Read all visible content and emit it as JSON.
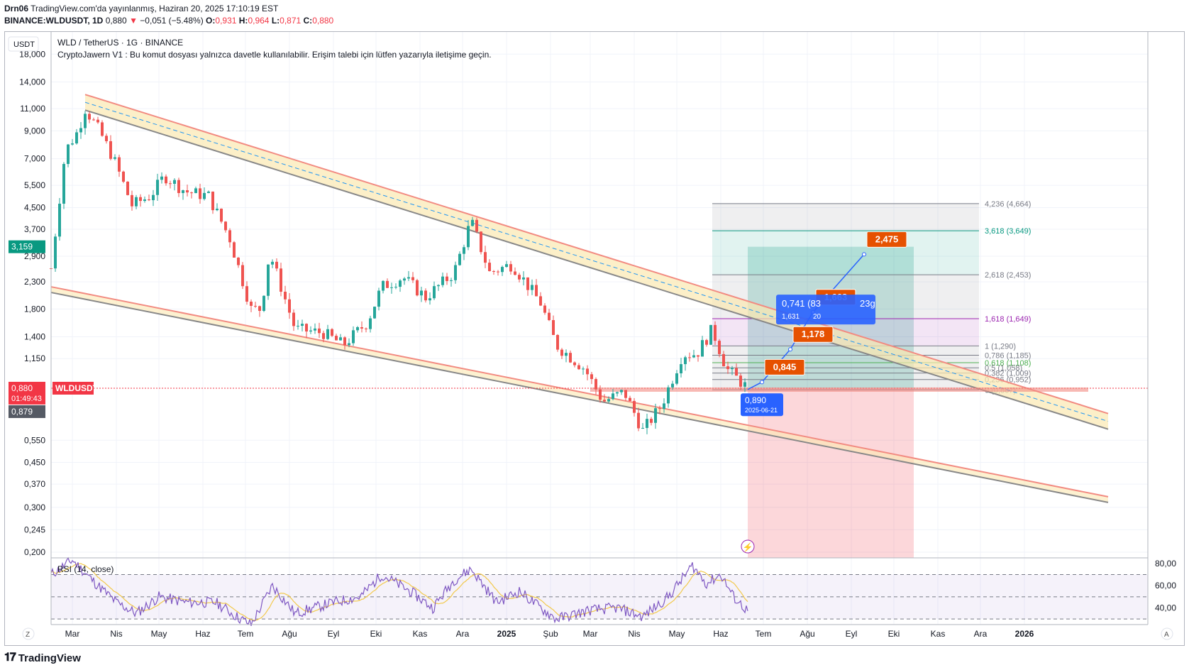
{
  "header": {
    "line1_author": "Drn06",
    "line1_text": "TradingView.com'da yayınlanmış, Haziran 20, 2025 17:10:19 EST",
    "symbol": "BINANCE:WLDUSDT, 1D",
    "last": "0,880",
    "change": "−0,051 (−5.48%)",
    "o_label": "O:",
    "o_val": "0,931",
    "h_label": "H:",
    "h_val": "0,964",
    "l_label": "L:",
    "l_val": "0,871",
    "c_label": "C:",
    "c_val": "0,880"
  },
  "chart_title": "WLD / TetherUS · 1G · BINANCE",
  "indicator_note": "CryptoJawern V1 : Bu komut dosyası yalnızca davetle kullanılabilir. Erişim talebi için lütfen yazarıyla iletişime geçin.",
  "currency_button": "USDT",
  "symbol_tag": "WLDUSDT",
  "price_badges": {
    "last": "0,880",
    "countdown": "01:49:43",
    "prev": "0,879",
    "high_mark": "3,159"
  },
  "zoom_button": "Z",
  "auto_button": "A",
  "footer_brand": "TradingView",
  "colors": {
    "up": "#26a69a",
    "down": "#ef5350",
    "channel_fill": "#fbe8b0",
    "channel_red": "#f28b82",
    "channel_gray": "#888888",
    "rsi": "#7e57c2",
    "rsi_ma": "#f2c94c",
    "label_orange": "#e65100",
    "label_blue": "#2962ff"
  },
  "chart_data": [
    {
      "type": "candlestick",
      "title": "WLD / TetherUS · 1G · BINANCE",
      "y_scale": "log",
      "ylim": [
        0.19,
        22
      ],
      "y_ticks": [
        "18,000",
        "14,000",
        "11,000",
        "9,000",
        "7,000",
        "5,500",
        "4,500",
        "3,700",
        "2,900",
        "2,300",
        "1,800",
        "1,400",
        "1,150",
        "0,550",
        "0,450",
        "0,370",
        "0,300",
        "0,245",
        "0,200"
      ],
      "y_tick_values": [
        18,
        14,
        11,
        9,
        7,
        5.5,
        4.5,
        3.7,
        2.9,
        2.3,
        1.8,
        1.4,
        1.15,
        0.55,
        0.45,
        0.37,
        0.3,
        0.245,
        0.2
      ],
      "x_ticks": [
        "Mar",
        "Nis",
        "May",
        "Haz",
        "Tem",
        "Ağu",
        "Eyl",
        "Eki",
        "Kas",
        "Ara",
        "2025",
        "Şub",
        "Mar",
        "Nis",
        "May",
        "Haz",
        "Tem",
        "Ağu",
        "Eyl",
        "Eki",
        "Kas",
        "Ara",
        "2026"
      ],
      "x_tick_months": [
        0,
        1,
        2,
        3,
        4,
        5,
        6,
        7,
        8,
        9,
        10,
        11,
        12,
        13,
        14,
        15,
        16,
        17,
        18,
        19,
        20,
        21,
        22
      ],
      "x_start": "2024-02-15",
      "last_candle": "2025-06-20",
      "price_path": [
        {
          "x": "2024-02-15",
          "y": 2.6
        },
        {
          "x": "2024-02-25",
          "y": 7.5
        },
        {
          "x": "2024-03-05",
          "y": 9
        },
        {
          "x": "2024-03-10",
          "y": 11
        },
        {
          "x": "2024-03-20",
          "y": 9
        },
        {
          "x": "2024-03-30",
          "y": 7
        },
        {
          "x": "2024-04-12",
          "y": 4.6
        },
        {
          "x": "2024-04-25",
          "y": 5
        },
        {
          "x": "2024-05-05",
          "y": 6
        },
        {
          "x": "2024-05-20",
          "y": 5.2
        },
        {
          "x": "2024-06-05",
          "y": 5
        },
        {
          "x": "2024-06-20",
          "y": 3.4
        },
        {
          "x": "2024-07-05",
          "y": 1.8
        },
        {
          "x": "2024-07-12",
          "y": 1.8
        },
        {
          "x": "2024-07-18",
          "y": 3
        },
        {
          "x": "2024-08-05",
          "y": 1.5
        },
        {
          "x": "2024-08-25",
          "y": 1.45
        },
        {
          "x": "2024-09-08",
          "y": 1.3
        },
        {
          "x": "2024-09-25",
          "y": 1.6
        },
        {
          "x": "2024-10-05",
          "y": 2.2
        },
        {
          "x": "2024-10-20",
          "y": 2.4
        },
        {
          "x": "2024-11-05",
          "y": 2.0
        },
        {
          "x": "2024-11-25",
          "y": 2.5
        },
        {
          "x": "2024-12-07",
          "y": 4.0
        },
        {
          "x": "2024-12-20",
          "y": 2.5
        },
        {
          "x": "2025-01-05",
          "y": 2.7
        },
        {
          "x": "2025-01-25",
          "y": 1.9
        },
        {
          "x": "2025-02-05",
          "y": 1.3
        },
        {
          "x": "2025-02-25",
          "y": 1.05
        },
        {
          "x": "2025-03-10",
          "y": 0.78
        },
        {
          "x": "2025-03-25",
          "y": 0.85
        },
        {
          "x": "2025-04-07",
          "y": 0.6
        },
        {
          "x": "2025-04-20",
          "y": 0.75
        },
        {
          "x": "2025-05-05",
          "y": 1.2
        },
        {
          "x": "2025-05-15",
          "y": 1.2
        },
        {
          "x": "2025-05-26",
          "y": 1.5
        },
        {
          "x": "2025-06-05",
          "y": 1.05
        },
        {
          "x": "2025-06-20",
          "y": 0.88
        }
      ],
      "channel": {
        "upper_start": {
          "x": "2024-03-10",
          "y": 12.5
        },
        "upper_end": {
          "x": "2026-03-01",
          "y": 0.7
        },
        "lower_start": {
          "x": "2024-02-15",
          "y": 2.2
        },
        "lower_end": {
          "x": "2026-03-01",
          "y": 0.33
        }
      },
      "horizontal_line": 0.88,
      "fibonacci": [
        {
          "label": "4,236 (4,664)",
          "value": 4.664,
          "color": "#787b86"
        },
        {
          "label": "3,618 (3,649)",
          "value": 3.649,
          "color": "#089981"
        },
        {
          "label": "2,618 (2,453)",
          "value": 2.453,
          "color": "#787b86"
        },
        {
          "label": "1,618 (1,649)",
          "value": 1.649,
          "color": "#9c27b0"
        },
        {
          "label": "1 (1,290)",
          "value": 1.29,
          "color": "#787b86"
        },
        {
          "label": "0,786 (1,185)",
          "value": 1.185,
          "color": "#787b86"
        },
        {
          "label": "0,618 (1,108)",
          "value": 1.108,
          "color": "#4caf50"
        },
        {
          "label": "0,5 (1,058)",
          "value": 1.058,
          "color": "#787b86"
        },
        {
          "label": "0,382 (1,009)",
          "value": 1.009,
          "color": "#787b86"
        },
        {
          "label": "0,236 (0,952)",
          "value": 0.952,
          "color": "#787b86"
        },
        {
          "label": "0 (0,867)",
          "value": 0.867,
          "color": "#787b86"
        }
      ],
      "position_tool": {
        "entry": 0.88,
        "target": 3.159,
        "stop": 0.19,
        "start": "2025-06-20",
        "end": "2025-10-15"
      },
      "projection_labels": [
        {
          "text": "0,845",
          "x": "2025-06-30",
          "y": 0.93
        },
        {
          "text": "1,178",
          "x": "2025-07-20",
          "y": 1.25
        },
        {
          "text": "1,663",
          "x": "2025-08-05",
          "y": 1.75
        },
        {
          "text": "2,475",
          "x": "2025-09-10",
          "y": 2.95
        }
      ],
      "measure_label": {
        "line1": "0,741 (83",
        "line1_tail": "23g",
        "line2": "1,631",
        "line2_tail": "20"
      },
      "date_label": {
        "price": "0,890",
        "date": "2025-06-21"
      }
    },
    {
      "type": "line",
      "title": "RSI (14, close)",
      "y_ticks": [
        "80,00",
        "60,00",
        "40,00"
      ],
      "y_tick_values": [
        80,
        60,
        40
      ],
      "ylim": [
        25,
        85
      ],
      "bands": [
        70,
        50,
        30
      ],
      "rsi_path": [
        {
          "x": "2024-02-15",
          "y": 70
        },
        {
          "x": "2024-03-01",
          "y": 83
        },
        {
          "x": "2024-03-15",
          "y": 65
        },
        {
          "x": "2024-04-01",
          "y": 45
        },
        {
          "x": "2024-04-15",
          "y": 35
        },
        {
          "x": "2024-05-01",
          "y": 50
        },
        {
          "x": "2024-05-20",
          "y": 45
        },
        {
          "x": "2024-06-10",
          "y": 45
        },
        {
          "x": "2024-06-25",
          "y": 32
        },
        {
          "x": "2024-07-05",
          "y": 25
        },
        {
          "x": "2024-07-20",
          "y": 60
        },
        {
          "x": "2024-08-05",
          "y": 35
        },
        {
          "x": "2024-09-01",
          "y": 45
        },
        {
          "x": "2024-09-20",
          "y": 50
        },
        {
          "x": "2024-10-05",
          "y": 70
        },
        {
          "x": "2024-10-25",
          "y": 55
        },
        {
          "x": "2024-11-10",
          "y": 40
        },
        {
          "x": "2024-11-25",
          "y": 65
        },
        {
          "x": "2024-12-07",
          "y": 75
        },
        {
          "x": "2024-12-25",
          "y": 45
        },
        {
          "x": "2025-01-10",
          "y": 55
        },
        {
          "x": "2025-01-25",
          "y": 40
        },
        {
          "x": "2025-02-05",
          "y": 30
        },
        {
          "x": "2025-03-01",
          "y": 38
        },
        {
          "x": "2025-03-20",
          "y": 40
        },
        {
          "x": "2025-04-07",
          "y": 32
        },
        {
          "x": "2025-04-25",
          "y": 50
        },
        {
          "x": "2025-05-12",
          "y": 78
        },
        {
          "x": "2025-05-22",
          "y": 62
        },
        {
          "x": "2025-06-01",
          "y": 70
        },
        {
          "x": "2025-06-10",
          "y": 50
        },
        {
          "x": "2025-06-20",
          "y": 37
        }
      ]
    }
  ]
}
